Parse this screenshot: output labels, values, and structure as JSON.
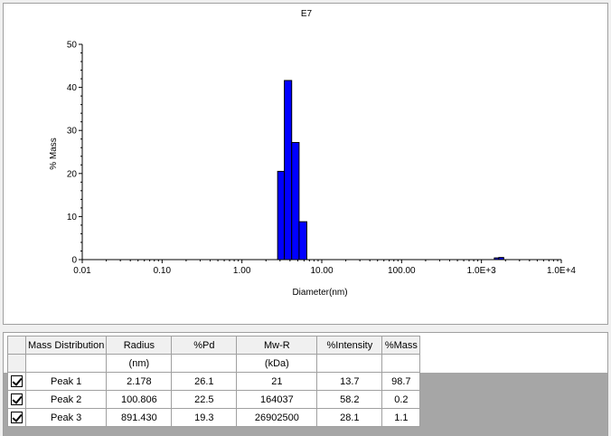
{
  "chart_data": {
    "type": "bar",
    "title": "E7",
    "xlabel": "Diameter(nm)",
    "ylabel": "% Mass",
    "xscale": "log",
    "xlim": [
      0.01,
      10000
    ],
    "ylim": [
      0,
      50
    ],
    "xticks": [
      "0.01",
      "0.10",
      "1.00",
      "10.00",
      "100.00",
      "1.0E+3",
      "1.0E+4"
    ],
    "yticks": [
      "0",
      "10",
      "20",
      "30",
      "40",
      "50"
    ],
    "bar_color": "#0000ff",
    "bars": [
      {
        "x0": 2.8,
        "x1": 3.4,
        "y": 20.5
      },
      {
        "x0": 3.4,
        "x1": 4.2,
        "y": 41.6
      },
      {
        "x0": 4.2,
        "x1": 5.2,
        "y": 27.2
      },
      {
        "x0": 5.2,
        "x1": 6.5,
        "y": 8.8
      },
      {
        "x0": 1450,
        "x1": 1650,
        "y": 0.4
      },
      {
        "x0": 1650,
        "x1": 1900,
        "y": 0.5
      }
    ]
  },
  "table": {
    "headers": [
      "Mass Distribution",
      "Radius",
      "%Pd",
      "Mw-R",
      "%Intensity",
      "%Mass"
    ],
    "units": [
      "",
      "(nm)",
      "",
      "(kDa)",
      "",
      ""
    ],
    "rows": [
      {
        "name": "Peak 1",
        "checked": true,
        "cells": [
          "2.178",
          "26.1",
          "21",
          "13.7",
          "98.7"
        ]
      },
      {
        "name": "Peak 2",
        "checked": true,
        "cells": [
          "100.806",
          "22.5",
          "164037",
          "58.2",
          "0.2"
        ]
      },
      {
        "name": "Peak 3",
        "checked": true,
        "cells": [
          "891.430",
          "19.3",
          "26902500",
          "28.1",
          "1.1"
        ]
      }
    ]
  }
}
